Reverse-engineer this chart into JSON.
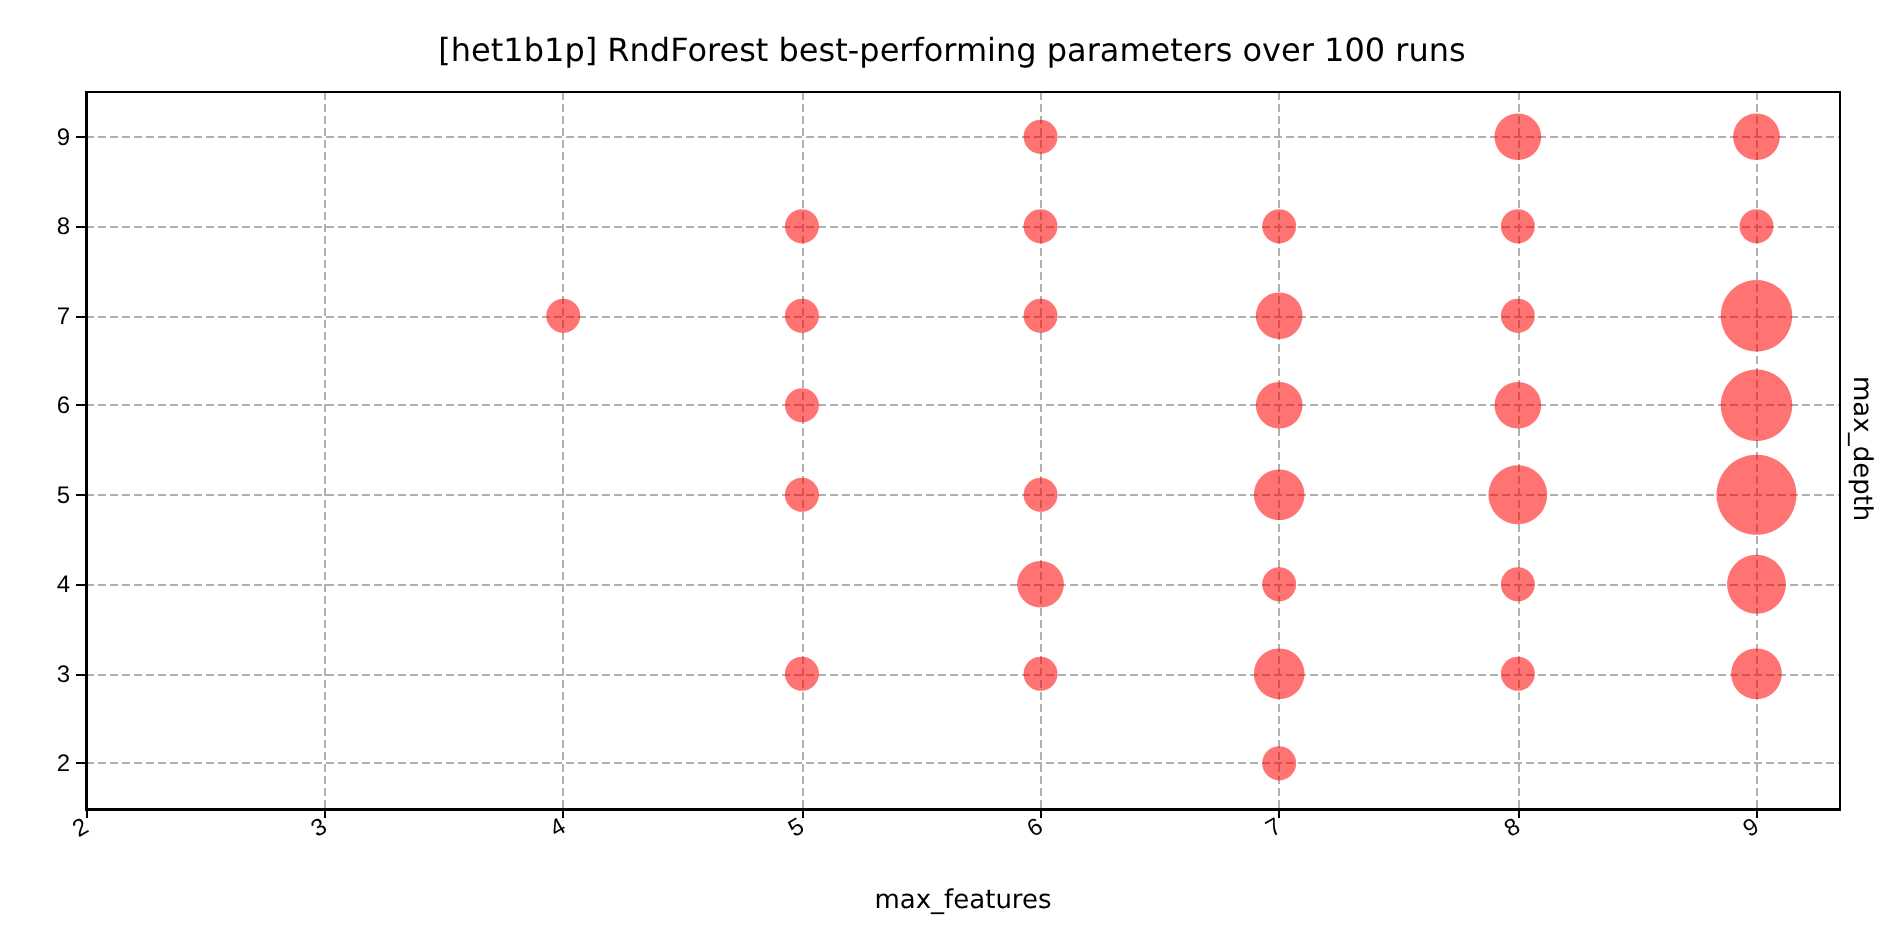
{
  "chart_data": {
    "type": "bubble",
    "title": "[het1b1p] RndForest best-performing parameters over 100 runs",
    "xlabel": "max_features",
    "ylabel": "max_depth",
    "xlim": [
      2,
      9.35
    ],
    "xticks": [
      2,
      3,
      4,
      5,
      6,
      7,
      8,
      9
    ],
    "ylim": [
      1.5,
      9.5
    ],
    "yticks": [
      2,
      3,
      4,
      5,
      6,
      7,
      8,
      9
    ],
    "grid": true,
    "series": [
      {
        "color": "#ff0000",
        "x": [
          4,
          5,
          5,
          5,
          5,
          5,
          6,
          6,
          6,
          6,
          6,
          6,
          7,
          7,
          7,
          7,
          7,
          7,
          7,
          8,
          8,
          8,
          8,
          8,
          8,
          8,
          9,
          9,
          9,
          9,
          9,
          9,
          9
        ],
        "values": [
          7,
          8,
          7,
          6,
          5,
          3,
          9,
          8,
          7,
          5,
          4,
          3,
          8,
          7,
          6,
          5,
          4,
          3,
          2,
          9,
          8,
          7,
          6,
          5,
          4,
          3,
          9,
          8,
          7,
          6,
          5,
          4,
          3
        ],
        "sizes": [
          0.18,
          0.18,
          0.18,
          0.18,
          0.18,
          0.18,
          0.18,
          0.18,
          0.18,
          0.18,
          0.34,
          0.18,
          0.18,
          0.34,
          0.34,
          0.4,
          0.18,
          0.4,
          0.18,
          0.34,
          0.18,
          0.18,
          0.34,
          0.54,
          0.18,
          0.18,
          0.34,
          0.18,
          0.8,
          0.8,
          1,
          0.54,
          0.4
        ]
      }
    ]
  }
}
